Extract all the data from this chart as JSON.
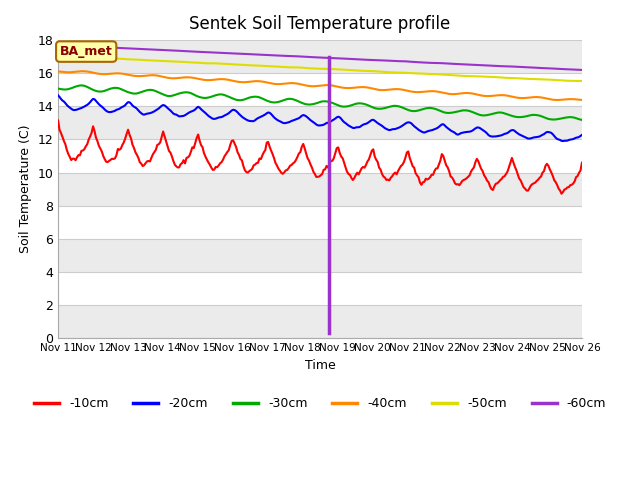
{
  "title": "Sentek Soil Temperature profile",
  "xlabel": "Time",
  "ylabel": "Soil Temperature (C)",
  "ylim": [
    0,
    18
  ],
  "yticks": [
    0,
    2,
    4,
    6,
    8,
    10,
    12,
    14,
    16,
    18
  ],
  "x_tick_labels": [
    "Nov 11",
    "Nov 12",
    "Nov 13",
    "Nov 14",
    "Nov 15",
    "Nov 16",
    "Nov 17",
    "Nov 18",
    "Nov 19",
    "Nov 20",
    "Nov 21",
    "Nov 22",
    "Nov 23",
    "Nov 24",
    "Nov 25",
    "Nov 26"
  ],
  "vline_day": 18.77,
  "vline_color": "#9933CC",
  "annotation_label": "BA_met",
  "colors": {
    "-10cm": "#FF0000",
    "-20cm": "#0000FF",
    "-30cm": "#00AA00",
    "-40cm": "#FF8800",
    "-50cm": "#DDDD00",
    "-60cm": "#9933CC"
  },
  "band_colors": [
    "#EBEBEB",
    "#FFFFFF"
  ],
  "figsize": [
    6.4,
    4.8
  ],
  "dpi": 100,
  "seed": 17
}
